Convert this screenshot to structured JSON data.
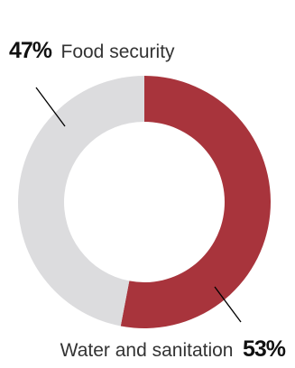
{
  "chart_data": {
    "type": "pie",
    "title": "",
    "labels": [
      "Food security",
      "Water and sanitation"
    ],
    "values": [
      47,
      53
    ],
    "value_labels": [
      "47%",
      "53%"
    ],
    "colors": [
      "#dcdcde",
      "#a8343c"
    ],
    "donut": true
  }
}
